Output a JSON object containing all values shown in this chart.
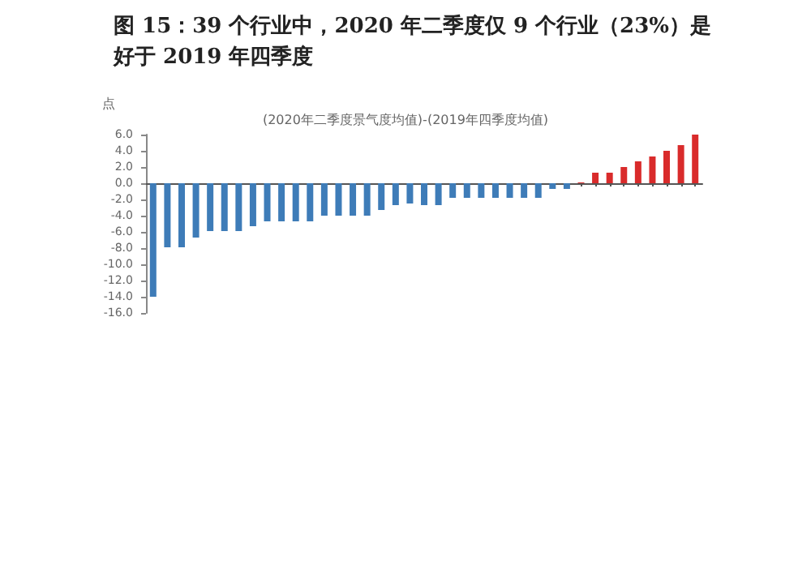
{
  "chart_data": {
    "type": "bar",
    "title": "图 15：39 个行业中，2020 年二季度仅 9 个行业（23%）是好于 2019 年四季度",
    "subtitle": "(2020年二季度景气度均值)-(2019年四季度均值)",
    "ylabel": "点",
    "categories": [
      null,
      null,
      null,
      null,
      null,
      null,
      null,
      null,
      null,
      null,
      null,
      null,
      null,
      null,
      null,
      null,
      null,
      null,
      null,
      null,
      null,
      null,
      null,
      null,
      null,
      null,
      null,
      null,
      null,
      null,
      null,
      null,
      null,
      null,
      null,
      null,
      null,
      null,
      null
    ],
    "values": [
      -14,
      -7.9,
      -7.9,
      -6.7,
      -5.9,
      -5.9,
      -5.9,
      -5.3,
      -4.7,
      -4.7,
      -4.7,
      -4.7,
      -4.0,
      -4.0,
      -4.0,
      -4.0,
      -3.3,
      -2.7,
      -2.5,
      -2.7,
      -2.7,
      -1.8,
      -1.8,
      -1.8,
      -1.8,
      -1.8,
      -1.8,
      -1.8,
      -0.7,
      -0.7,
      0.1,
      1.3,
      1.3,
      2.0,
      2.7,
      3.3,
      4.0,
      4.7,
      6.0
    ],
    "colors": [
      "#3e7cb8",
      "#3e7cb8",
      "#3e7cb8",
      "#3e7cb8",
      "#3e7cb8",
      "#3e7cb8",
      "#3e7cb8",
      "#3e7cb8",
      "#3e7cb8",
      "#3e7cb8",
      "#3e7cb8",
      "#3e7cb8",
      "#3e7cb8",
      "#3e7cb8",
      "#3e7cb8",
      "#3e7cb8",
      "#3e7cb8",
      "#3e7cb8",
      "#3e7cb8",
      "#3e7cb8",
      "#3e7cb8",
      "#3e7cb8",
      "#3e7cb8",
      "#3e7cb8",
      "#3e7cb8",
      "#3e7cb8",
      "#3e7cb8",
      "#3e7cb8",
      "#3e7cb8",
      "#3e7cb8",
      "#d92b2b",
      "#d92b2b",
      "#d92b2b",
      "#d92b2b",
      "#d92b2b",
      "#d92b2b",
      "#d92b2b",
      "#d92b2b",
      "#d92b2b"
    ],
    "ylim": [
      -16,
      6
    ],
    "yticks": [
      {
        "value": -16,
        "label": "-16.0"
      },
      {
        "value": -14,
        "label": "-14.0"
      },
      {
        "value": -12,
        "label": "-12.0"
      },
      {
        "value": -10,
        "label": "-10.0"
      },
      {
        "value": -8,
        "label": "-8.0"
      },
      {
        "value": -6,
        "label": "-6.0"
      },
      {
        "value": -4,
        "label": "-4.0"
      },
      {
        "value": -2,
        "label": "-2.0"
      },
      {
        "value": 0,
        "label": "0.0"
      },
      {
        "value": 2,
        "label": "2.0"
      },
      {
        "value": 4,
        "label": "4.0"
      },
      {
        "value": 6,
        "label": "6.0"
      }
    ],
    "tick_labels": "y"
  }
}
